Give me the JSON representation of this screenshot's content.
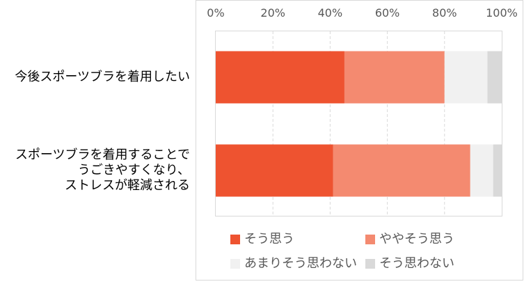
{
  "chart_data": {
    "type": "bar",
    "orientation": "horizontal",
    "stacked": "percent",
    "categories": [
      [
        "今後スポーツブラを着用したい"
      ],
      [
        "スポーツブラを着用することで",
        "うごきやすくなり、",
        "ストレスが軽減される"
      ]
    ],
    "series": [
      {
        "name": "そう思う",
        "values": [
          45,
          41
        ],
        "color": "#ee5330"
      },
      {
        "name": "ややそう思う",
        "values": [
          35,
          48
        ],
        "color": "#f48a70"
      },
      {
        "name": "あまりそう思わない",
        "values": [
          15,
          8
        ],
        "color": "#f1f1f1"
      },
      {
        "name": "そう思わない",
        "values": [
          5,
          3
        ],
        "color": "#d9d9d9"
      }
    ],
    "x_ticks": [
      "0%",
      "20%",
      "40%",
      "60%",
      "80%",
      "100%"
    ],
    "xlim": [
      0,
      100
    ],
    "grid": "vertical-dashed",
    "legend_position": "bottom"
  }
}
